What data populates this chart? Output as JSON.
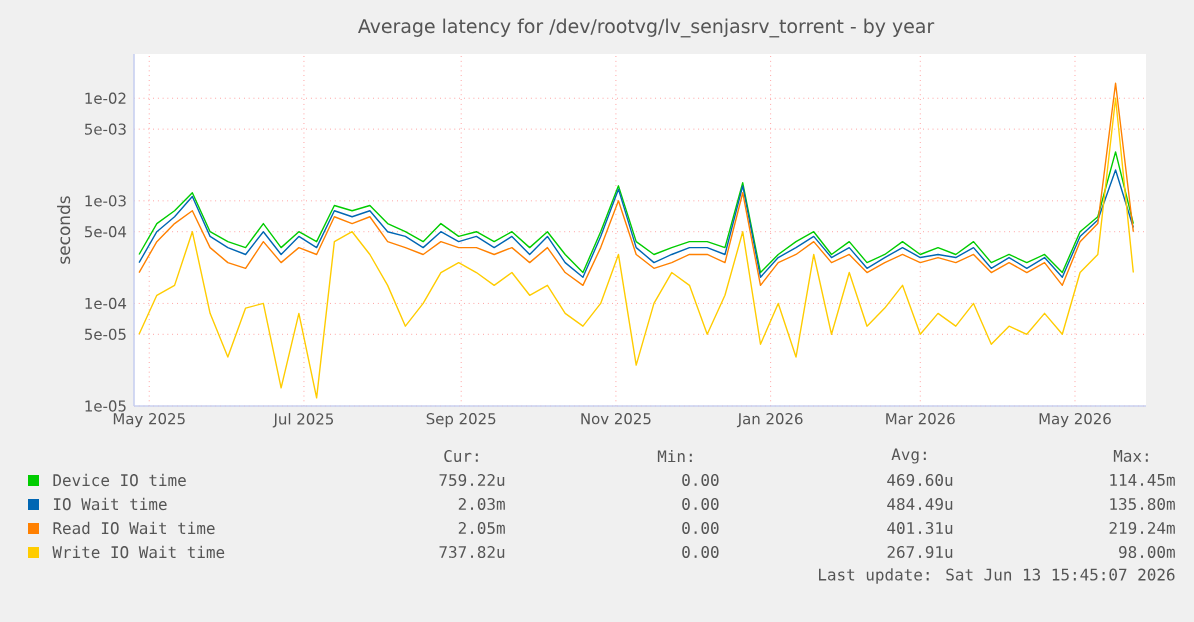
{
  "chart_data": {
    "type": "line",
    "title": "Average latency for /dev/rootvg/lv_senjasrv_torrent - by year",
    "ylabel": "seconds",
    "x": [
      "2025-04-27",
      "2025-05-04",
      "2025-05-11",
      "2025-05-18",
      "2025-05-25",
      "2025-06-01",
      "2025-06-08",
      "2025-06-15",
      "2025-06-22",
      "2025-06-29",
      "2025-07-06",
      "2025-07-13",
      "2025-07-20",
      "2025-07-27",
      "2025-08-03",
      "2025-08-10",
      "2025-08-17",
      "2025-08-24",
      "2025-08-31",
      "2025-09-07",
      "2025-09-14",
      "2025-09-21",
      "2025-09-28",
      "2025-10-05",
      "2025-10-12",
      "2025-10-19",
      "2025-10-26",
      "2025-11-02",
      "2025-11-09",
      "2025-11-16",
      "2025-11-23",
      "2025-11-30",
      "2025-12-07",
      "2025-12-14",
      "2025-12-21",
      "2025-12-28",
      "2026-01-04",
      "2026-01-11",
      "2026-01-18",
      "2026-01-25",
      "2026-02-01",
      "2026-02-08",
      "2026-02-15",
      "2026-02-22",
      "2026-03-01",
      "2026-03-08",
      "2026-03-15",
      "2026-03-22",
      "2026-03-29",
      "2026-04-05",
      "2026-04-12",
      "2026-04-19",
      "2026-04-26",
      "2026-05-03",
      "2026-05-10",
      "2026-05-17",
      "2026-05-24"
    ],
    "series": [
      {
        "name": "Device IO time",
        "color": "#00cc00",
        "values": [
          0.0003,
          0.0006,
          0.0008,
          0.0012,
          0.0005,
          0.0004,
          0.00035,
          0.0006,
          0.00035,
          0.0005,
          0.0004,
          0.0009,
          0.0008,
          0.0009,
          0.0006,
          0.0005,
          0.0004,
          0.0006,
          0.00045,
          0.0005,
          0.0004,
          0.0005,
          0.00035,
          0.0005,
          0.0003,
          0.0002,
          0.0005,
          0.0014,
          0.0004,
          0.0003,
          0.00035,
          0.0004,
          0.0004,
          0.00035,
          0.0015,
          0.0002,
          0.0003,
          0.0004,
          0.0005,
          0.0003,
          0.0004,
          0.00025,
          0.0003,
          0.0004,
          0.0003,
          0.00035,
          0.0003,
          0.0004,
          0.00025,
          0.0003,
          0.00025,
          0.0003,
          0.0002,
          0.0005,
          0.0007,
          0.003,
          0.0006
        ]
      },
      {
        "name": "IO Wait time",
        "color": "#0066b3",
        "values": [
          0.00025,
          0.0005,
          0.0007,
          0.0011,
          0.00045,
          0.00035,
          0.0003,
          0.0005,
          0.0003,
          0.00045,
          0.00035,
          0.0008,
          0.0007,
          0.0008,
          0.0005,
          0.00045,
          0.00035,
          0.0005,
          0.0004,
          0.00045,
          0.00035,
          0.00045,
          0.0003,
          0.00045,
          0.00025,
          0.00018,
          0.00045,
          0.0013,
          0.00035,
          0.00025,
          0.0003,
          0.00035,
          0.00035,
          0.0003,
          0.0014,
          0.00018,
          0.00028,
          0.00035,
          0.00045,
          0.00028,
          0.00035,
          0.00022,
          0.00028,
          0.00035,
          0.00028,
          0.0003,
          0.00028,
          0.00035,
          0.00022,
          0.00028,
          0.00022,
          0.00028,
          0.00018,
          0.00045,
          0.00065,
          0.002,
          0.00055
        ]
      },
      {
        "name": "Read IO Wait time",
        "color": "#ff8000",
        "values": [
          0.0002,
          0.0004,
          0.0006,
          0.0008,
          0.00035,
          0.00025,
          0.00022,
          0.0004,
          0.00025,
          0.00035,
          0.0003,
          0.0007,
          0.0006,
          0.0007,
          0.0004,
          0.00035,
          0.0003,
          0.0004,
          0.00035,
          0.00035,
          0.0003,
          0.00035,
          0.00025,
          0.00035,
          0.0002,
          0.00015,
          0.00035,
          0.001,
          0.0003,
          0.00022,
          0.00025,
          0.0003,
          0.0003,
          0.00025,
          0.0012,
          0.00015,
          0.00025,
          0.0003,
          0.0004,
          0.00025,
          0.0003,
          0.0002,
          0.00025,
          0.0003,
          0.00025,
          0.00028,
          0.00025,
          0.0003,
          0.0002,
          0.00025,
          0.0002,
          0.00025,
          0.00015,
          0.0004,
          0.0006,
          0.014,
          0.0005
        ]
      },
      {
        "name": "Write IO Wait time",
        "color": "#ffcc00",
        "values": [
          5e-05,
          0.00012,
          0.00015,
          0.0005,
          8e-05,
          3e-05,
          9e-05,
          0.0001,
          1.5e-05,
          8e-05,
          1.2e-05,
          0.0004,
          0.0005,
          0.0003,
          0.00015,
          6e-05,
          0.0001,
          0.0002,
          0.00025,
          0.0002,
          0.00015,
          0.0002,
          0.00012,
          0.00015,
          8e-05,
          6e-05,
          0.0001,
          0.0003,
          2.5e-05,
          0.0001,
          0.0002,
          0.00015,
          5e-05,
          0.00012,
          0.0005,
          4e-05,
          0.0001,
          3e-05,
          0.0003,
          5e-05,
          0.0002,
          6e-05,
          9e-05,
          0.00015,
          5e-05,
          8e-05,
          6e-05,
          0.0001,
          4e-05,
          6e-05,
          5e-05,
          8e-05,
          5e-05,
          0.0002,
          0.0003,
          0.01,
          0.0002
        ]
      }
    ],
    "log": true,
    "grid": true,
    "legend": "bottom",
    "marker": "none",
    "line_style": "solid",
    "xlim": [
      "2025-04-25",
      "2026-05-29"
    ],
    "ylim": [
      1e-05,
      0.027
    ],
    "xticks": [
      {
        "value": "2025-05-01",
        "label": "May 2025"
      },
      {
        "value": "2025-07-01",
        "label": "Jul 2025"
      },
      {
        "value": "2025-09-01",
        "label": "Sep 2025"
      },
      {
        "value": "2025-11-01",
        "label": "Nov 2025"
      },
      {
        "value": "2026-01-01",
        "label": "Jan 2026"
      },
      {
        "value": "2026-03-01",
        "label": "Mar 2026"
      },
      {
        "value": "2026-05-01",
        "label": "May 2026"
      }
    ],
    "yticks": [
      {
        "value": 1e-05,
        "label": "1e-05"
      },
      {
        "value": 5e-05,
        "label": "5e-05"
      },
      {
        "value": 0.0001,
        "label": "1e-04"
      },
      {
        "value": 0.0005,
        "label": "5e-04"
      },
      {
        "value": 0.001,
        "label": "1e-03"
      },
      {
        "value": 0.005,
        "label": "5e-03"
      },
      {
        "value": 0.01,
        "label": "1e-02"
      }
    ],
    "annotations": [
      "Cur:",
      "Min:",
      "Avg:",
      "Max:",
      "759.22u",
      "0.00",
      "469.60u",
      "114.45m",
      "2.03m",
      "0.00",
      "484.49u",
      "135.80m",
      "2.05m",
      "0.00",
      "401.31u",
      "219.24m",
      "737.82u",
      "0.00",
      "267.91u",
      "98.00m",
      "Last update: Sat Jun 13 15:45:07 2026"
    ]
  }
}
